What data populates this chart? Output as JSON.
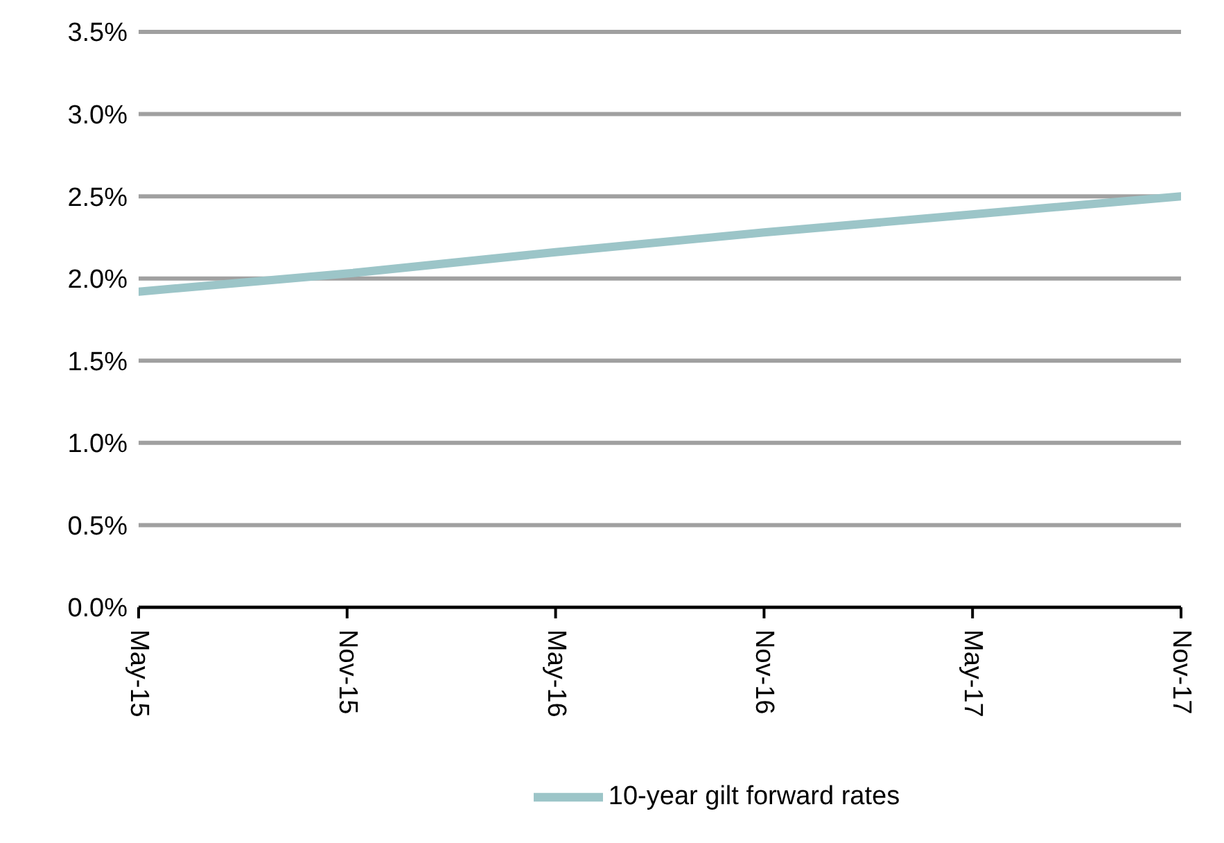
{
  "chart_data": {
    "type": "line",
    "categories": [
      "May-15",
      "Nov-15",
      "May-16",
      "Nov-16",
      "May-17",
      "Nov-17"
    ],
    "series": [
      {
        "name": "10-year gilt forward rates",
        "color": "#9cc5c8",
        "values": [
          1.92,
          2.03,
          2.16,
          2.28,
          2.39,
          2.5
        ]
      }
    ],
    "ylim": [
      0,
      3.5
    ],
    "yticks": [
      {
        "value": 0,
        "label": "0.0%"
      },
      {
        "value": 0.5,
        "label": "0.5%"
      },
      {
        "value": 1,
        "label": "1.0%"
      },
      {
        "value": 1.5,
        "label": "1.5%"
      },
      {
        "value": 2,
        "label": "2.0%"
      },
      {
        "value": 2.5,
        "label": "2.5%"
      },
      {
        "value": 3,
        "label": "3.0%"
      },
      {
        "value": 3.5,
        "label": "3.5%"
      }
    ],
    "grid": "y",
    "legend": "bottom",
    "marker": "none",
    "line_style": "solid"
  }
}
